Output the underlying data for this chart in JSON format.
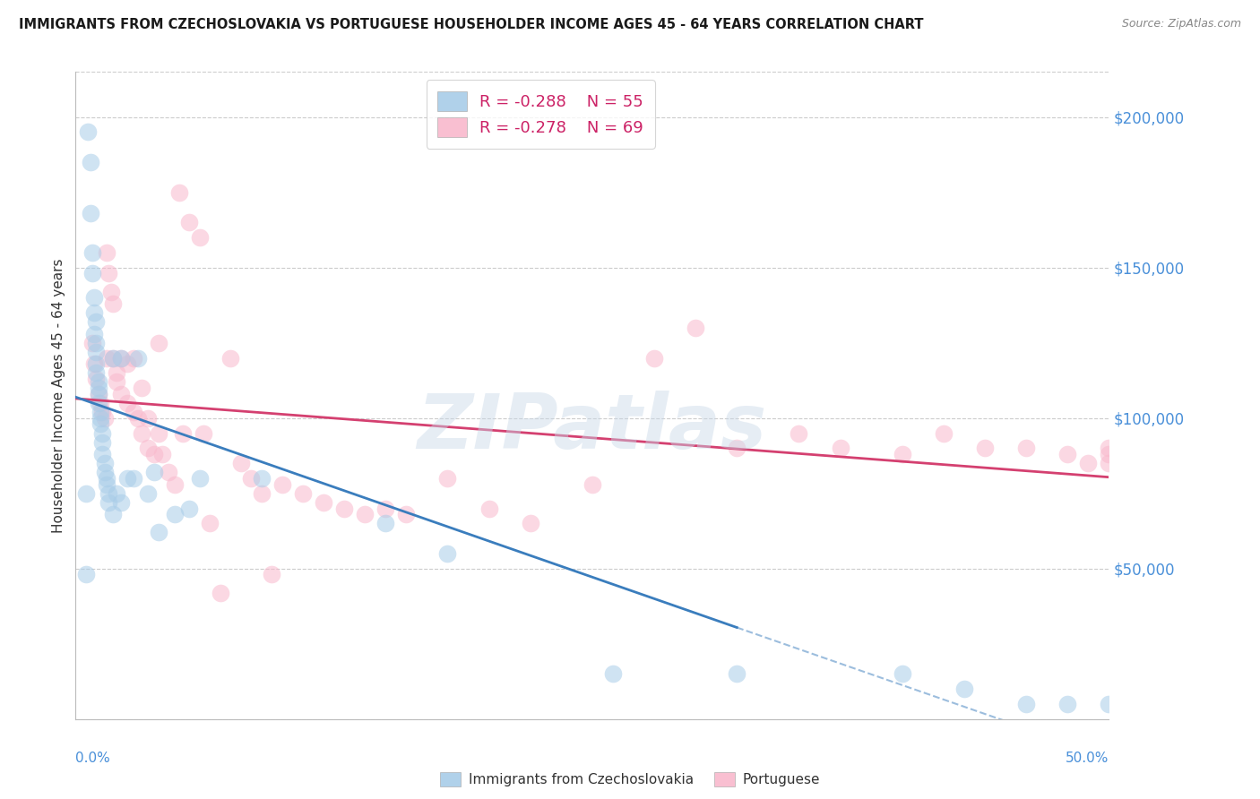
{
  "title": "IMMIGRANTS FROM CZECHOSLOVAKIA VS PORTUGUESE HOUSEHOLDER INCOME AGES 45 - 64 YEARS CORRELATION CHART",
  "source": "Source: ZipAtlas.com",
  "ylabel": "Householder Income Ages 45 - 64 years",
  "xlim": [
    0.0,
    0.5
  ],
  "ylim": [
    0,
    215000
  ],
  "y_ticks": [
    0,
    50000,
    100000,
    150000,
    200000
  ],
  "y_tick_labels": [
    "",
    "$50,000",
    "$100,000",
    "$150,000",
    "$200,000"
  ],
  "legend_r1_val": "-0.288",
  "legend_n1_val": "55",
  "legend_r2_val": "-0.278",
  "legend_n2_val": "69",
  "color_blue_scatter": "#a8cce8",
  "color_pink_scatter": "#f9b8cc",
  "color_blue_line": "#3a7dbd",
  "color_pink_line": "#d44070",
  "color_axis_val": "#4a90d9",
  "watermark": "ZIPatlas",
  "blue_x": [
    0.005,
    0.006,
    0.007,
    0.007,
    0.008,
    0.008,
    0.009,
    0.009,
    0.009,
    0.01,
    0.01,
    0.01,
    0.01,
    0.01,
    0.011,
    0.011,
    0.011,
    0.011,
    0.012,
    0.012,
    0.012,
    0.013,
    0.013,
    0.013,
    0.014,
    0.014,
    0.015,
    0.015,
    0.016,
    0.016,
    0.018,
    0.018,
    0.02,
    0.022,
    0.022,
    0.025,
    0.028,
    0.03,
    0.035,
    0.038,
    0.04,
    0.048,
    0.055,
    0.06,
    0.09,
    0.005,
    0.15,
    0.18,
    0.26,
    0.32,
    0.4,
    0.43,
    0.46,
    0.48,
    0.5
  ],
  "blue_y": [
    48000,
    195000,
    185000,
    168000,
    155000,
    148000,
    140000,
    135000,
    128000,
    132000,
    125000,
    122000,
    118000,
    115000,
    112000,
    110000,
    108000,
    105000,
    102000,
    100000,
    98000,
    95000,
    92000,
    88000,
    85000,
    82000,
    80000,
    78000,
    75000,
    72000,
    68000,
    120000,
    75000,
    72000,
    120000,
    80000,
    80000,
    120000,
    75000,
    82000,
    62000,
    68000,
    70000,
    80000,
    80000,
    75000,
    65000,
    55000,
    15000,
    15000,
    15000,
    10000,
    5000,
    5000,
    5000
  ],
  "pink_x": [
    0.008,
    0.009,
    0.01,
    0.011,
    0.012,
    0.013,
    0.014,
    0.015,
    0.015,
    0.016,
    0.017,
    0.018,
    0.018,
    0.02,
    0.02,
    0.022,
    0.022,
    0.025,
    0.025,
    0.028,
    0.028,
    0.03,
    0.032,
    0.032,
    0.035,
    0.035,
    0.038,
    0.04,
    0.04,
    0.042,
    0.045,
    0.048,
    0.05,
    0.052,
    0.055,
    0.06,
    0.062,
    0.065,
    0.07,
    0.075,
    0.08,
    0.085,
    0.09,
    0.095,
    0.1,
    0.11,
    0.12,
    0.13,
    0.14,
    0.15,
    0.16,
    0.18,
    0.2,
    0.22,
    0.25,
    0.28,
    0.3,
    0.32,
    0.35,
    0.37,
    0.4,
    0.42,
    0.44,
    0.46,
    0.48,
    0.49,
    0.5,
    0.5,
    0.5
  ],
  "pink_y": [
    125000,
    118000,
    113000,
    108000,
    105000,
    102000,
    100000,
    120000,
    155000,
    148000,
    142000,
    138000,
    120000,
    115000,
    112000,
    108000,
    120000,
    118000,
    105000,
    102000,
    120000,
    100000,
    95000,
    110000,
    100000,
    90000,
    88000,
    125000,
    95000,
    88000,
    82000,
    78000,
    175000,
    95000,
    165000,
    160000,
    95000,
    65000,
    42000,
    120000,
    85000,
    80000,
    75000,
    48000,
    78000,
    75000,
    72000,
    70000,
    68000,
    70000,
    68000,
    80000,
    70000,
    65000,
    78000,
    120000,
    130000,
    90000,
    95000,
    90000,
    88000,
    95000,
    90000,
    90000,
    88000,
    85000,
    90000,
    88000,
    85000
  ]
}
